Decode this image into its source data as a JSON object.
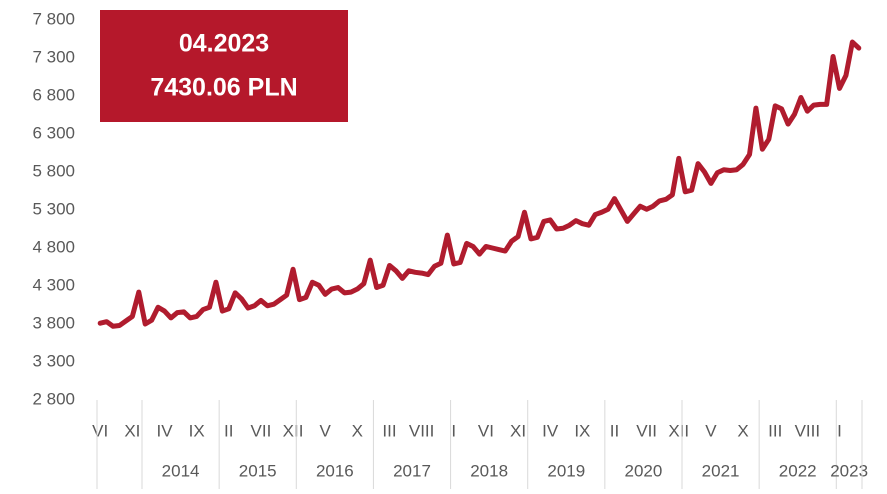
{
  "chart_data": {
    "type": "line",
    "annotation": {
      "date": "04.2023",
      "value": "7430.06 PLN"
    },
    "categories": [
      "VI",
      null,
      null,
      null,
      null,
      "XI",
      null,
      null,
      null,
      null,
      "IV",
      null,
      null,
      null,
      null,
      "IX",
      null,
      null,
      null,
      null,
      "II",
      null,
      null,
      null,
      null,
      "VII",
      null,
      null,
      null,
      null,
      "XII",
      null,
      null,
      null,
      null,
      "V",
      null,
      null,
      null,
      null,
      "X",
      null,
      null,
      null,
      null,
      "III",
      null,
      null,
      null,
      null,
      "VIII",
      null,
      null,
      null,
      null,
      "I",
      null,
      null,
      null,
      null,
      "VI",
      null,
      null,
      null,
      null,
      "XI",
      null,
      null,
      null,
      null,
      "IV",
      null,
      null,
      null,
      null,
      "IX",
      null,
      null,
      null,
      null,
      "II",
      null,
      null,
      null,
      null,
      "VII",
      null,
      null,
      null,
      null,
      "XII",
      null,
      null,
      null,
      null,
      "V",
      null,
      null,
      null,
      null,
      "X",
      null,
      null,
      null,
      null,
      "III",
      null,
      null,
      null,
      null,
      "VIII",
      null,
      null,
      null,
      null,
      "I",
      null,
      null,
      null
    ],
    "groups": [
      {
        "label": null,
        "size": 7
      },
      {
        "label": "2014",
        "size": 12
      },
      {
        "label": "2015",
        "size": 12
      },
      {
        "label": "2016",
        "size": 12
      },
      {
        "label": "2017",
        "size": 12
      },
      {
        "label": "2018",
        "size": 12
      },
      {
        "label": "2019",
        "size": 12
      },
      {
        "label": "2020",
        "size": 12
      },
      {
        "label": "2021",
        "size": 12
      },
      {
        "label": "2022",
        "size": 12
      },
      {
        "label": "2023",
        "size": 4
      }
    ],
    "series": [
      {
        "color": "#b01c2e",
        "values": [
          3810,
          3830,
          3770,
          3780,
          3840,
          3900,
          4220,
          3800,
          3850,
          4020,
          3970,
          3880,
          3950,
          3960,
          3880,
          3900,
          3990,
          4020,
          4350,
          3970,
          4000,
          4210,
          4130,
          4010,
          4040,
          4110,
          4040,
          4060,
          4120,
          4180,
          4520,
          4120,
          4150,
          4350,
          4310,
          4190,
          4260,
          4280,
          4210,
          4220,
          4260,
          4330,
          4640,
          4280,
          4310,
          4570,
          4500,
          4400,
          4500,
          4480,
          4470,
          4450,
          4560,
          4600,
          4970,
          4590,
          4610,
          4860,
          4820,
          4720,
          4820,
          4800,
          4780,
          4760,
          4890,
          4950,
          5270,
          4920,
          4940,
          5150,
          5170,
          5050,
          5060,
          5100,
          5160,
          5120,
          5100,
          5240,
          5270,
          5310,
          5450,
          5300,
          5150,
          5250,
          5350,
          5310,
          5350,
          5420,
          5440,
          5500,
          5980,
          5540,
          5560,
          5910,
          5800,
          5650,
          5790,
          5830,
          5820,
          5830,
          5900,
          6030,
          6640,
          6100,
          6230,
          6670,
          6630,
          6430,
          6560,
          6780,
          6600,
          6680,
          6690,
          6690,
          7320,
          6900,
          7070,
          7510,
          7430.06
        ]
      }
    ],
    "ylim": [
      2800,
      7800
    ],
    "yticks": [
      {
        "value": 2800,
        "label": "2 800"
      },
      {
        "value": 3300,
        "label": "3 300"
      },
      {
        "value": 3800,
        "label": "3 800"
      },
      {
        "value": 4300,
        "label": "4 300"
      },
      {
        "value": 4800,
        "label": "4 800"
      },
      {
        "value": 5300,
        "label": "5 300"
      },
      {
        "value": 5800,
        "label": "5 800"
      },
      {
        "value": 6300,
        "label": "6 300"
      },
      {
        "value": 6800,
        "label": "6 800"
      },
      {
        "value": 7300,
        "label": "7 300"
      },
      {
        "value": 7800,
        "label": "7 800"
      }
    ]
  }
}
